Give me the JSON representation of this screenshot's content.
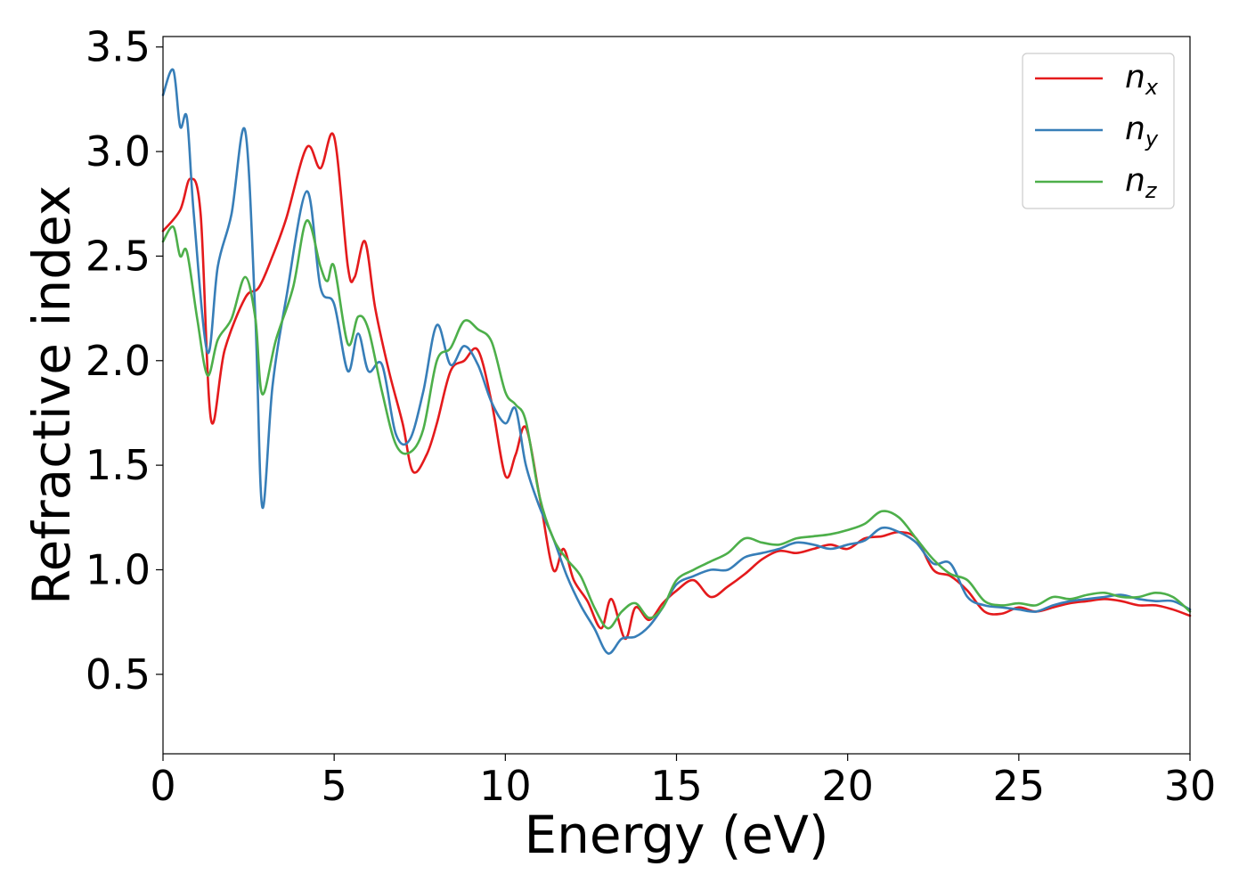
{
  "chart_data": {
    "type": "line",
    "title": "",
    "xlabel": "Energy (eV)",
    "ylabel": "Refractive index",
    "xlim": [
      0,
      30
    ],
    "ylim": [
      0.12,
      3.55
    ],
    "xticks": [
      0,
      5,
      10,
      15,
      20,
      25,
      30
    ],
    "xtick_labels": [
      "0",
      "5",
      "10",
      "15",
      "20",
      "25",
      "30"
    ],
    "yticks": [
      0.5,
      1.0,
      1.5,
      2.0,
      2.5,
      3.0,
      3.5
    ],
    "ytick_labels": [
      "0.5",
      "1.0",
      "1.5",
      "2.0",
      "2.5",
      "3.0",
      "3.5"
    ],
    "grid": false,
    "legend_position": "top-right",
    "series": [
      {
        "name": "n",
        "subscript": "x",
        "color": "#e41a1c",
        "x": [
          0,
          0.5,
          0.8,
          1.1,
          1.4,
          1.8,
          2.4,
          2.8,
          3.2,
          3.6,
          4.2,
          4.6,
          5.0,
          5.4,
          5.6,
          5.9,
          6.2,
          6.6,
          7.0,
          7.3,
          7.7,
          8.0,
          8.4,
          8.8,
          9.2,
          9.6,
          10.0,
          10.3,
          10.6,
          11.0,
          11.4,
          11.7,
          12.0,
          12.4,
          12.8,
          13.1,
          13.5,
          13.8,
          14.2,
          14.6,
          15.0,
          15.5,
          16.0,
          16.5,
          17.0,
          17.5,
          18.0,
          18.5,
          19.0,
          19.5,
          20.0,
          20.5,
          21.0,
          21.5,
          22.0,
          22.5,
          23.0,
          23.5,
          24.0,
          24.5,
          25.0,
          25.5,
          26.0,
          26.5,
          27.0,
          27.5,
          28.0,
          28.5,
          29.0,
          29.5,
          30.0
        ],
        "y": [
          2.62,
          2.72,
          2.87,
          2.7,
          1.72,
          2.05,
          2.3,
          2.35,
          2.5,
          2.68,
          3.02,
          2.92,
          3.07,
          2.45,
          2.4,
          2.57,
          2.25,
          1.95,
          1.7,
          1.47,
          1.55,
          1.7,
          1.95,
          2.0,
          2.05,
          1.8,
          1.45,
          1.55,
          1.68,
          1.35,
          1.0,
          1.1,
          0.95,
          0.85,
          0.72,
          0.86,
          0.67,
          0.82,
          0.76,
          0.84,
          0.9,
          0.95,
          0.87,
          0.92,
          0.98,
          1.05,
          1.09,
          1.08,
          1.1,
          1.12,
          1.1,
          1.15,
          1.16,
          1.18,
          1.15,
          1.0,
          0.97,
          0.9,
          0.8,
          0.79,
          0.82,
          0.8,
          0.82,
          0.84,
          0.85,
          0.86,
          0.85,
          0.83,
          0.83,
          0.81,
          0.78
        ]
      },
      {
        "name": "n",
        "subscript": "y",
        "color": "#377eb8",
        "x": [
          0,
          0.3,
          0.5,
          0.7,
          0.9,
          1.3,
          1.6,
          2.0,
          2.4,
          2.7,
          2.9,
          3.2,
          3.6,
          4.2,
          4.6,
          5.0,
          5.4,
          5.7,
          6.0,
          6.4,
          6.8,
          7.2,
          7.6,
          8.0,
          8.4,
          8.8,
          9.2,
          9.6,
          10.0,
          10.3,
          10.6,
          11.0,
          11.4,
          11.8,
          12.2,
          12.6,
          13.0,
          13.4,
          13.8,
          14.2,
          14.6,
          15.0,
          15.5,
          16.0,
          16.5,
          17.0,
          17.5,
          18.0,
          18.5,
          19.0,
          19.5,
          20.0,
          20.5,
          21.0,
          21.5,
          22.0,
          22.5,
          23.0,
          23.5,
          24.0,
          24.5,
          25.0,
          25.5,
          26.0,
          26.5,
          27.0,
          27.5,
          28.0,
          28.5,
          29.0,
          29.5,
          30.0
        ],
        "y": [
          3.27,
          3.39,
          3.12,
          3.16,
          2.7,
          2.04,
          2.45,
          2.7,
          3.1,
          2.2,
          1.3,
          1.88,
          2.3,
          2.81,
          2.35,
          2.27,
          1.95,
          2.13,
          1.95,
          1.98,
          1.65,
          1.62,
          1.85,
          2.17,
          1.98,
          2.07,
          1.98,
          1.8,
          1.7,
          1.77,
          1.5,
          1.3,
          1.15,
          0.97,
          0.83,
          0.72,
          0.6,
          0.67,
          0.68,
          0.73,
          0.82,
          0.93,
          0.97,
          1.0,
          1.0,
          1.06,
          1.08,
          1.1,
          1.13,
          1.12,
          1.1,
          1.12,
          1.14,
          1.2,
          1.18,
          1.13,
          1.03,
          1.03,
          0.87,
          0.83,
          0.82,
          0.81,
          0.8,
          0.83,
          0.85,
          0.86,
          0.87,
          0.88,
          0.86,
          0.85,
          0.85,
          0.81
        ]
      },
      {
        "name": "n",
        "subscript": "z",
        "color": "#4daf4a",
        "x": [
          0,
          0.3,
          0.5,
          0.7,
          1.0,
          1.3,
          1.6,
          2.0,
          2.4,
          2.7,
          2.9,
          3.3,
          3.8,
          4.2,
          4.6,
          4.8,
          5.0,
          5.4,
          5.7,
          6.0,
          6.4,
          6.8,
          7.2,
          7.6,
          8.0,
          8.4,
          8.8,
          9.2,
          9.6,
          10.0,
          10.3,
          10.6,
          11.0,
          11.4,
          11.8,
          12.2,
          12.6,
          13.0,
          13.4,
          13.8,
          14.2,
          14.6,
          15.0,
          15.5,
          16.0,
          16.5,
          17.0,
          17.5,
          18.0,
          18.5,
          19.0,
          19.5,
          20.0,
          20.5,
          21.0,
          21.5,
          22.0,
          22.5,
          23.0,
          23.5,
          24.0,
          24.5,
          25.0,
          25.5,
          26.0,
          26.5,
          27.0,
          27.5,
          28.0,
          28.5,
          29.0,
          29.5,
          30.0
        ],
        "y": [
          2.57,
          2.64,
          2.5,
          2.52,
          2.2,
          1.93,
          2.1,
          2.2,
          2.4,
          2.2,
          1.84,
          2.1,
          2.35,
          2.67,
          2.45,
          2.38,
          2.45,
          2.08,
          2.21,
          2.15,
          1.85,
          1.6,
          1.56,
          1.67,
          2.0,
          2.06,
          2.19,
          2.15,
          2.09,
          1.85,
          1.79,
          1.71,
          1.35,
          1.15,
          1.05,
          0.97,
          0.82,
          0.72,
          0.8,
          0.84,
          0.77,
          0.82,
          0.95,
          1.0,
          1.04,
          1.08,
          1.15,
          1.13,
          1.12,
          1.15,
          1.16,
          1.17,
          1.19,
          1.22,
          1.28,
          1.25,
          1.15,
          1.05,
          0.98,
          0.95,
          0.85,
          0.83,
          0.84,
          0.83,
          0.87,
          0.86,
          0.88,
          0.89,
          0.87,
          0.87,
          0.89,
          0.87,
          0.8
        ]
      }
    ]
  }
}
